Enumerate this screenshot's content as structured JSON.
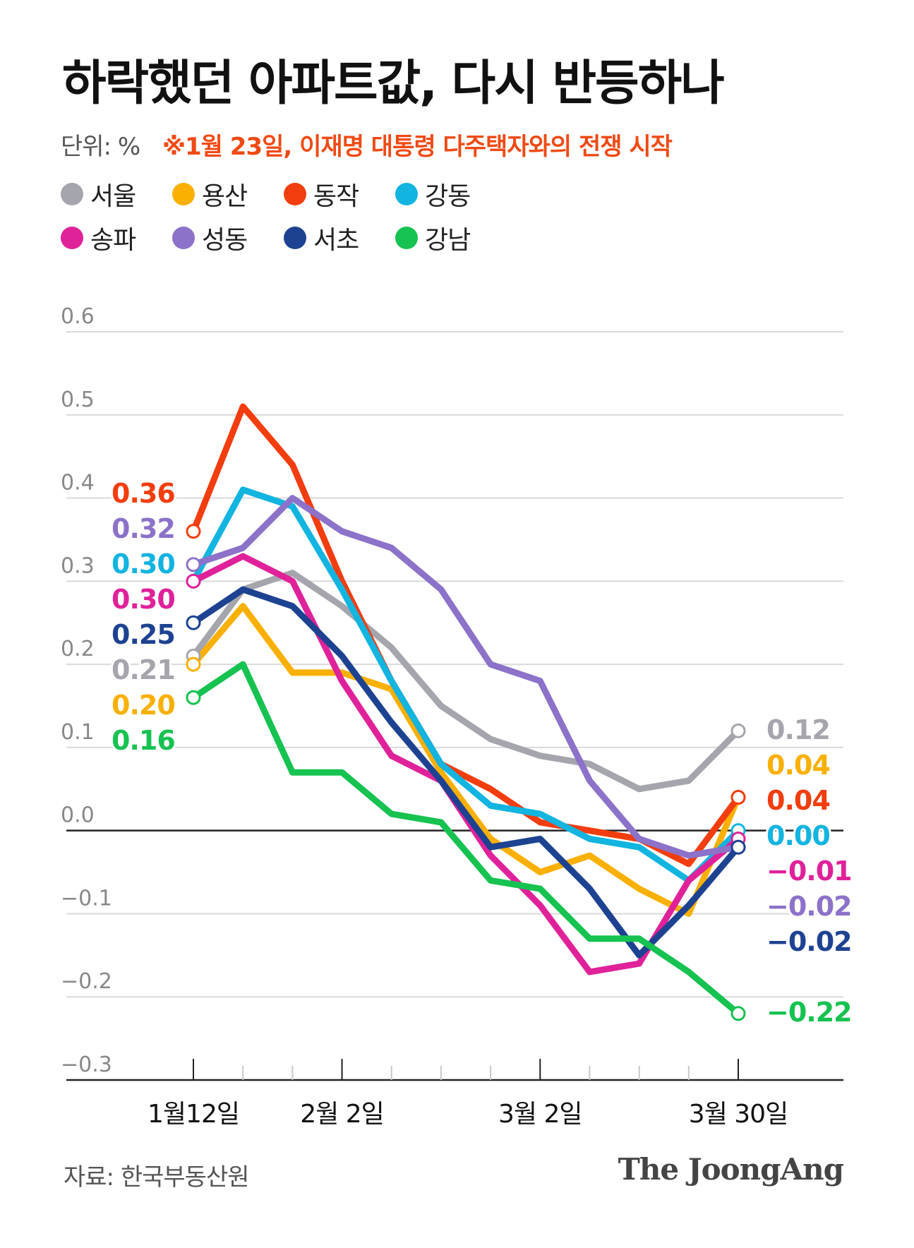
{
  "header": {
    "title": "하락했던 아파트값, 다시 반등하나",
    "unit_label": "단위: %",
    "note": "※1월 23일, 이재명 대통령 다주택자와의 전쟁 시작"
  },
  "colors": {
    "grid": "#d9d9d9",
    "zero_line": "#222222",
    "axis_text": "#888888"
  },
  "chart_data": {
    "type": "line",
    "title": "하락했던 아파트값, 다시 반등하나",
    "unit": "%",
    "ylim": [
      -0.3,
      0.6
    ],
    "y_ticks": [
      0.6,
      0.5,
      0.4,
      0.3,
      0.2,
      0.1,
      0.0,
      -0.1,
      -0.2,
      -0.3
    ],
    "y_tick_labels": [
      "0.6",
      "0.5",
      "0.4",
      "0.3",
      "0.2",
      "0.1",
      "0.0",
      "−0.1",
      "−0.2",
      "−0.3"
    ],
    "x_count": 12,
    "x_labels": [
      {
        "index": 0,
        "label": "1월12일"
      },
      {
        "index": 3,
        "label": "2월 2일"
      },
      {
        "index": 7,
        "label": "3월 2일"
      },
      {
        "index": 11,
        "label": "3월 30일"
      }
    ],
    "grid": true,
    "series": [
      {
        "name": "서울",
        "color": "#a5a5ad",
        "values": [
          0.21,
          0.29,
          0.31,
          0.27,
          0.22,
          0.15,
          0.11,
          0.09,
          0.08,
          0.05,
          0.06,
          0.12
        ],
        "start_label": "0.21",
        "end_label": "0.12"
      },
      {
        "name": "용산",
        "color": "#f9b000",
        "values": [
          0.2,
          0.27,
          0.19,
          0.19,
          0.17,
          0.07,
          -0.01,
          -0.05,
          -0.03,
          -0.07,
          -0.1,
          0.04
        ],
        "start_label": "0.20",
        "end_label": "0.04"
      },
      {
        "name": "동작",
        "color": "#f23d0e",
        "values": [
          0.36,
          0.51,
          0.44,
          0.3,
          0.18,
          0.08,
          0.05,
          0.01,
          0.0,
          -0.01,
          -0.04,
          0.04
        ],
        "start_label": "0.36",
        "end_label": "0.04"
      },
      {
        "name": "강동",
        "color": "#12b4e0",
        "values": [
          0.3,
          0.41,
          0.39,
          0.29,
          0.18,
          0.08,
          0.03,
          0.02,
          -0.01,
          -0.02,
          -0.06,
          0.0
        ],
        "start_label": "0.30",
        "end_label": "0.00"
      },
      {
        "name": "송파",
        "color": "#e0229a",
        "values": [
          0.3,
          0.33,
          0.3,
          0.18,
          0.09,
          0.06,
          -0.03,
          -0.09,
          -0.17,
          -0.16,
          -0.06,
          -0.01
        ],
        "start_label": "0.30",
        "end_label": "−0.01"
      },
      {
        "name": "성동",
        "color": "#8c72c9",
        "values": [
          0.32,
          0.34,
          0.4,
          0.36,
          0.34,
          0.29,
          0.2,
          0.18,
          0.06,
          -0.01,
          -0.03,
          -0.02
        ],
        "start_label": "0.32",
        "end_label": "−0.02"
      },
      {
        "name": "서초",
        "color": "#1d4291",
        "values": [
          0.25,
          0.29,
          0.27,
          0.21,
          0.13,
          0.06,
          -0.02,
          -0.01,
          -0.07,
          -0.15,
          -0.09,
          -0.02
        ],
        "start_label": "0.25",
        "end_label": "−0.02"
      },
      {
        "name": "강남",
        "color": "#16c250",
        "values": [
          0.16,
          0.2,
          0.07,
          0.07,
          0.02,
          0.01,
          -0.06,
          -0.07,
          -0.13,
          -0.13,
          -0.17,
          -0.22
        ],
        "start_label": "0.16",
        "end_label": "−0.22"
      }
    ],
    "legend_placement": "top-left"
  },
  "footer": {
    "source": "자료: 한국부동산원",
    "brand": "The JoongAng"
  }
}
